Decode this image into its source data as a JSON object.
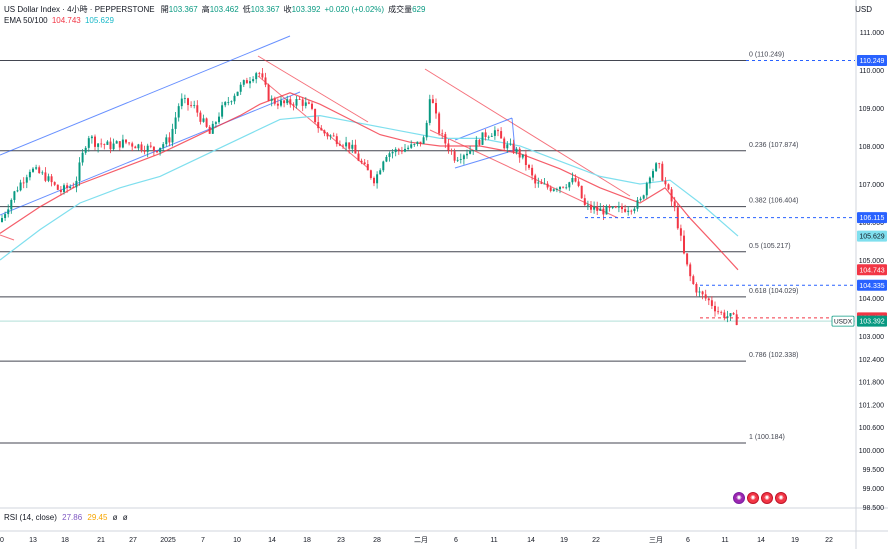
{
  "header": {
    "title": "US Dollar Index · 4小時 · PEPPERSTONE",
    "ohlc": [
      {
        "k": "開",
        "v": "103.367"
      },
      {
        "k": "高",
        "v": "103.462"
      },
      {
        "k": "低",
        "v": "103.367"
      },
      {
        "k": "收",
        "v": "103.392"
      },
      {
        "k": "",
        "v": "+0.020 (+0.02%)"
      },
      {
        "k": "成交量",
        "v": "629"
      }
    ],
    "ema_label": "EMA 50/100",
    "ema50_value": "104.743",
    "ema100_value": "105.629"
  },
  "currency": "USD",
  "rsi": {
    "label": "RSI (14, close)",
    "v1": "27.86",
    "v2": "29.45",
    "v3": "ø",
    "v4": "ø"
  },
  "colors": {
    "up": "#089981",
    "down": "#f23645",
    "ema50": "#f23645",
    "ema100": "#7fdfee",
    "fib": "#131722",
    "channel_up": "#2962ff",
    "channel_down": "#f23645",
    "dashed": "#2962ff"
  },
  "chart_data": {
    "type": "candlestick",
    "symbol": "USDX",
    "y_axis_ticks": [
      "111.000",
      "110.000",
      "109.000",
      "108.000",
      "107.000",
      "106.000",
      "105.000",
      "104.000",
      "103.000",
      "102.400",
      "101.800",
      "101.200",
      "100.600",
      "100.000",
      "99.500",
      "99.000",
      "98.500"
    ],
    "x_axis_ticks": [
      "0",
      "13",
      "18",
      "21",
      "27",
      "2025",
      "7",
      "10",
      "14",
      "18",
      "23",
      "28",
      "二月",
      "6",
      "11",
      "14",
      "19",
      "22",
      "三月",
      "6",
      "11",
      "14",
      "19",
      "22"
    ],
    "fibonacci": [
      {
        "label": "0 (110.249)",
        "value": 110.249
      },
      {
        "label": "0.236 (107.874)",
        "value": 107.874
      },
      {
        "label": "0.382 (106.404)",
        "value": 106.404
      },
      {
        "label": "0.5 (105.217)",
        "value": 105.217
      },
      {
        "label": "0.618 (104.029)",
        "value": 104.029
      },
      {
        "label": "0.786 (102.338)",
        "value": 102.338
      },
      {
        "label": "1 (100.184)",
        "value": 100.184
      }
    ],
    "price_labels": [
      {
        "value": 110.249,
        "text": "110.249",
        "color": "#2962ff"
      },
      {
        "value": 106.115,
        "text": "106.115",
        "color": "#2962ff"
      },
      {
        "value": 105.629,
        "text": "105.629",
        "color": "#7fdfee"
      },
      {
        "value": 104.743,
        "text": "104.743",
        "color": "#f23645"
      },
      {
        "value": 104.335,
        "text": "104.335",
        "color": "#2962ff"
      },
      {
        "value": 103.476,
        "text": "103.476",
        "color": "#f23645"
      },
      {
        "value": 103.392,
        "text": "103.392",
        "color": "#089981",
        "tag": "USDX"
      }
    ],
    "close_path": [
      [
        0,
        106.0
      ],
      [
        15,
        106.8
      ],
      [
        30,
        107.4
      ],
      [
        45,
        107.2
      ],
      [
        60,
        106.8
      ],
      [
        75,
        107.0
      ],
      [
        88,
        108.3
      ],
      [
        95,
        108.1
      ],
      [
        110,
        108.0
      ],
      [
        125,
        108.1
      ],
      [
        140,
        108.0
      ],
      [
        155,
        107.9
      ],
      [
        170,
        108.2
      ],
      [
        180,
        109.2
      ],
      [
        195,
        109.0
      ],
      [
        210,
        108.3
      ],
      [
        220,
        108.9
      ],
      [
        235,
        109.4
      ],
      [
        250,
        109.8
      ],
      [
        258,
        110.0
      ],
      [
        270,
        109.2
      ],
      [
        285,
        109.1
      ],
      [
        300,
        109.2
      ],
      [
        310,
        109.0
      ],
      [
        320,
        108.4
      ],
      [
        335,
        108.2
      ],
      [
        350,
        108.0
      ],
      [
        365,
        107.4
      ],
      [
        375,
        107.1
      ],
      [
        385,
        107.8
      ],
      [
        400,
        107.9
      ],
      [
        415,
        108.0
      ],
      [
        425,
        108.2
      ],
      [
        430,
        109.4
      ],
      [
        440,
        108.3
      ],
      [
        455,
        107.7
      ],
      [
        470,
        107.9
      ],
      [
        485,
        108.3
      ],
      [
        495,
        108.4
      ],
      [
        505,
        108.0
      ],
      [
        515,
        107.9
      ],
      [
        525,
        107.6
      ],
      [
        535,
        107.0
      ],
      [
        550,
        106.9
      ],
      [
        565,
        107.0
      ],
      [
        575,
        107.1
      ],
      [
        585,
        106.4
      ],
      [
        600,
        106.3
      ],
      [
        615,
        106.3
      ],
      [
        630,
        106.4
      ],
      [
        640,
        106.5
      ],
      [
        650,
        107.3
      ],
      [
        658,
        107.5
      ],
      [
        665,
        107.0
      ],
      [
        675,
        106.3
      ],
      [
        685,
        105.0
      ],
      [
        692,
        104.4
      ],
      [
        700,
        104.1
      ],
      [
        710,
        103.9
      ],
      [
        720,
        103.6
      ],
      [
        730,
        103.5
      ],
      [
        738,
        103.392
      ]
    ],
    "ema50_path": [
      [
        0,
        105.7
      ],
      [
        40,
        106.4
      ],
      [
        80,
        107.0
      ],
      [
        120,
        107.4
      ],
      [
        160,
        107.8
      ],
      [
        200,
        108.3
      ],
      [
        240,
        108.8
      ],
      [
        260,
        109.1
      ],
      [
        290,
        109.4
      ],
      [
        320,
        109.1
      ],
      [
        350,
        108.7
      ],
      [
        380,
        108.3
      ],
      [
        410,
        108.1
      ],
      [
        440,
        108.0
      ],
      [
        480,
        108.0
      ],
      [
        520,
        107.8
      ],
      [
        560,
        107.4
      ],
      [
        600,
        106.9
      ],
      [
        640,
        106.5
      ],
      [
        665,
        106.9
      ],
      [
        690,
        106.1
      ],
      [
        715,
        105.4
      ],
      [
        738,
        104.743
      ]
    ],
    "ema100_path": [
      [
        0,
        105.0
      ],
      [
        40,
        105.8
      ],
      [
        80,
        106.5
      ],
      [
        120,
        106.9
      ],
      [
        160,
        107.2
      ],
      [
        200,
        107.7
      ],
      [
        240,
        108.2
      ],
      [
        280,
        108.7
      ],
      [
        320,
        108.8
      ],
      [
        360,
        108.6
      ],
      [
        400,
        108.4
      ],
      [
        440,
        108.2
      ],
      [
        480,
        108.2
      ],
      [
        520,
        108.0
      ],
      [
        560,
        107.6
      ],
      [
        600,
        107.2
      ],
      [
        640,
        107.0
      ],
      [
        670,
        107.1
      ],
      [
        700,
        106.5
      ],
      [
        738,
        105.629
      ]
    ]
  }
}
